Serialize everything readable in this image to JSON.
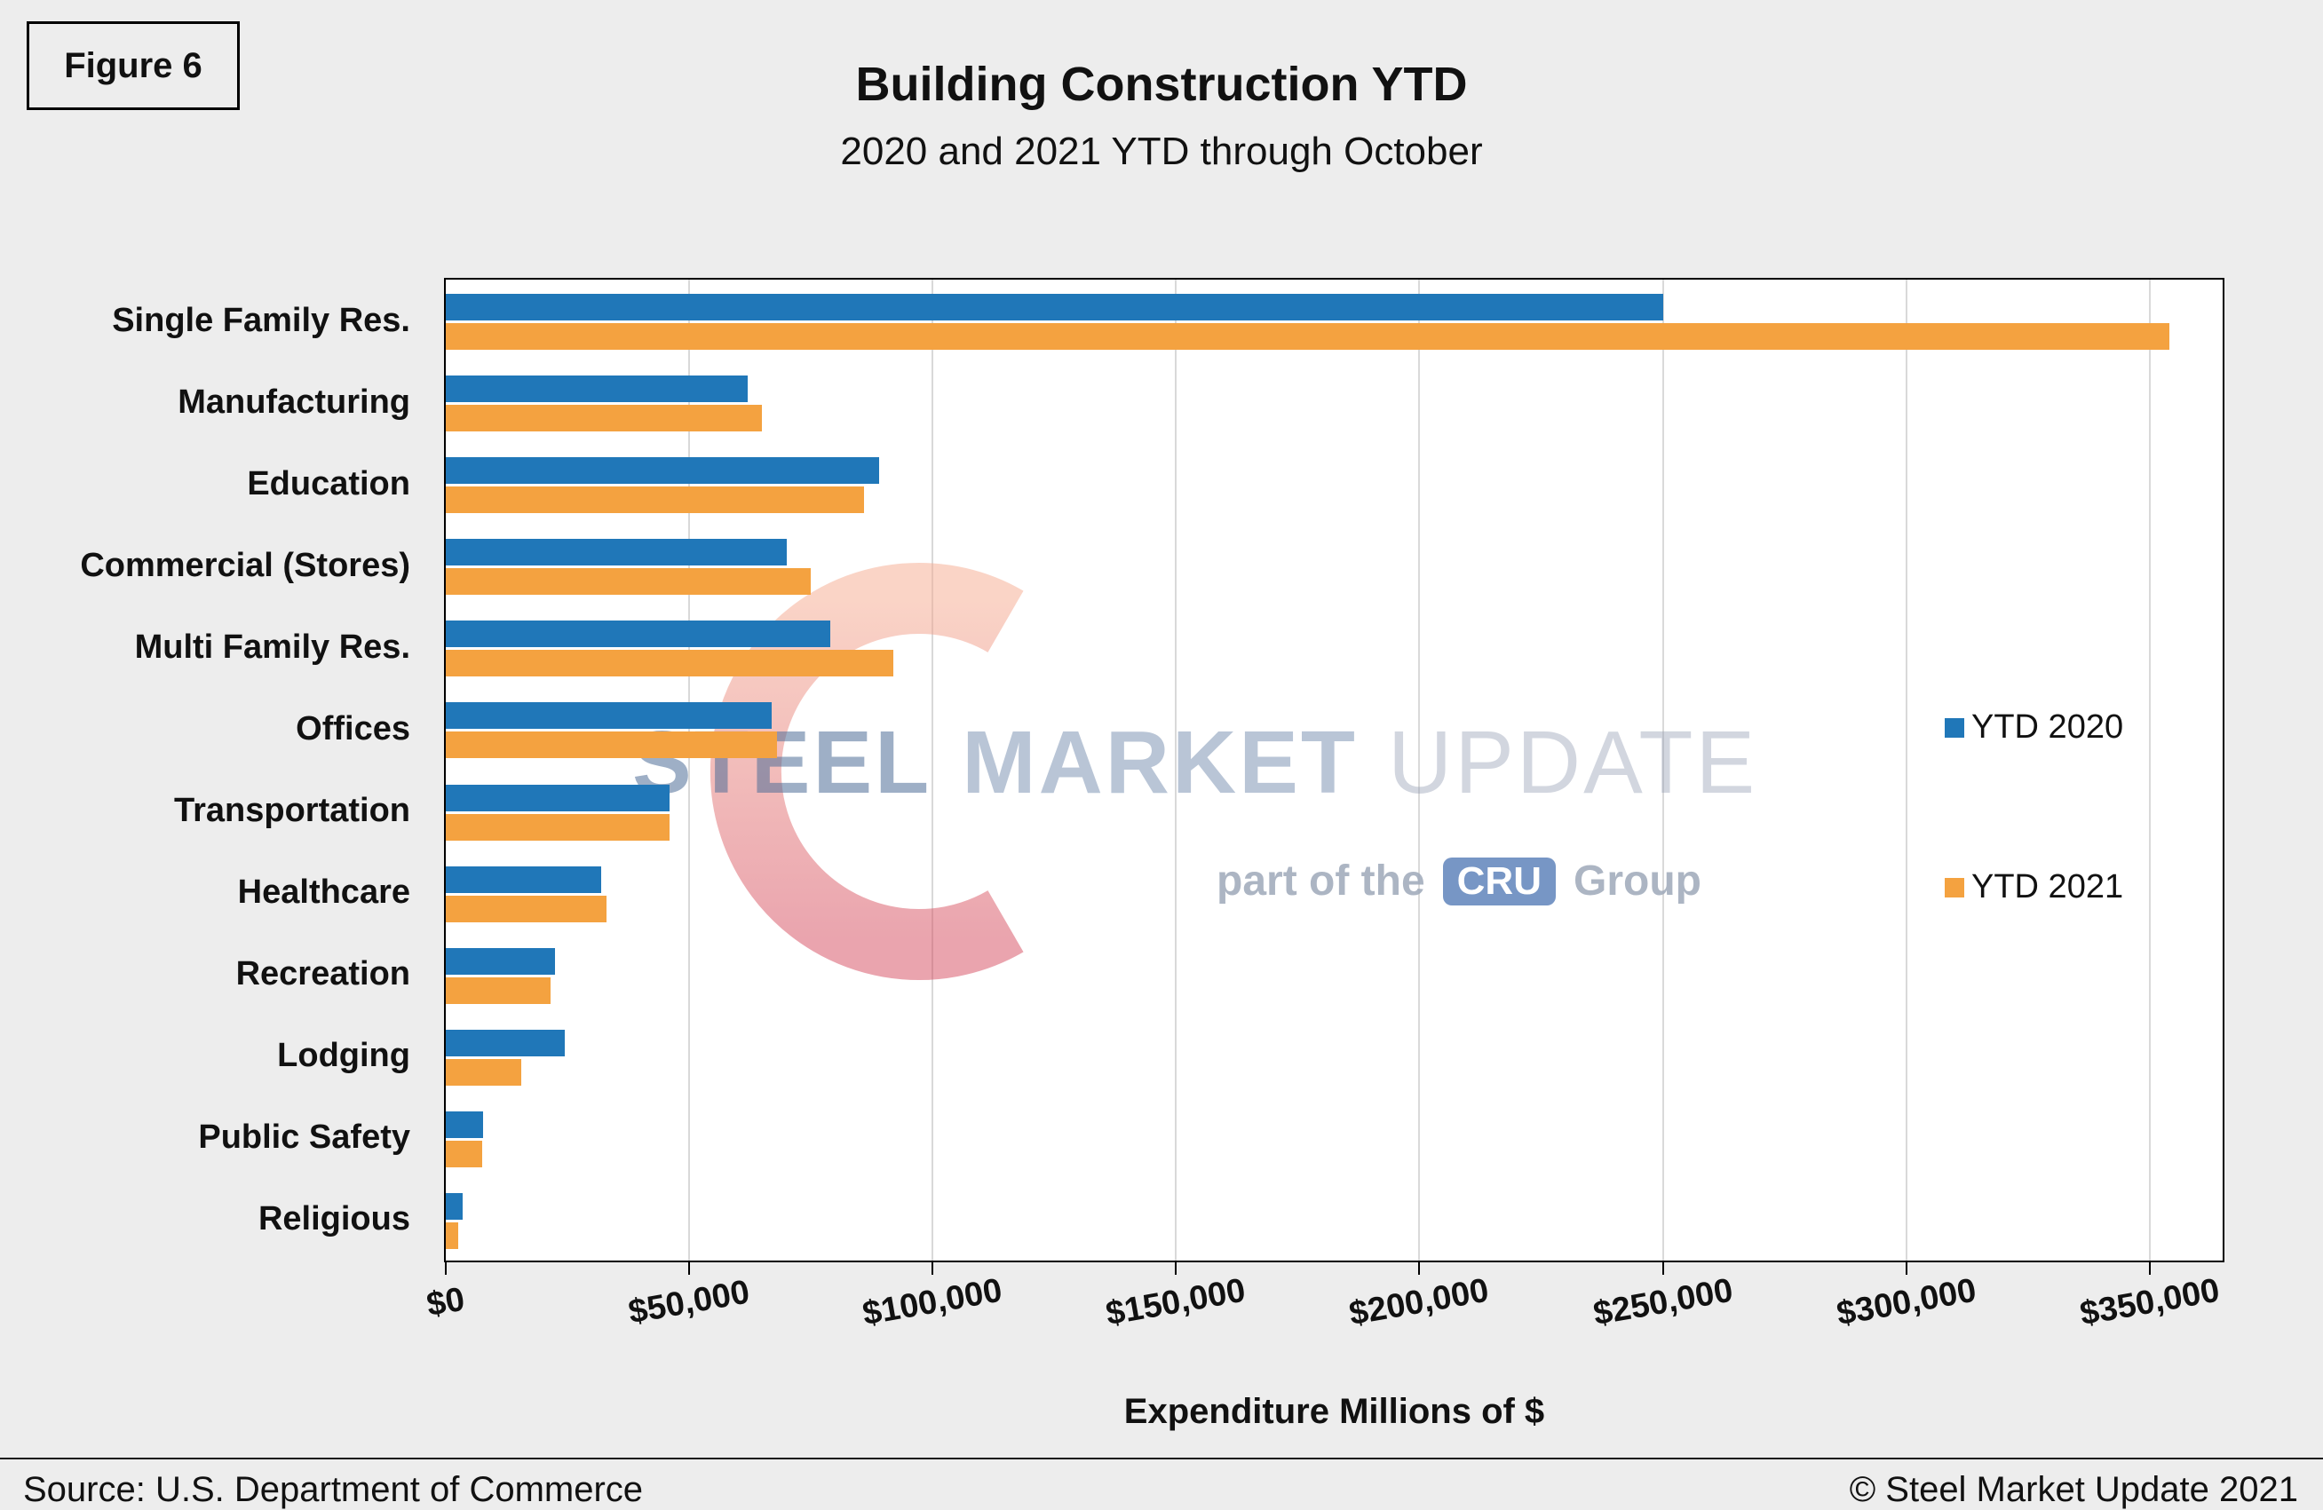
{
  "figure_label": "Figure 6",
  "source": "Source: U.S. Department of Commerce",
  "copyright": "© Steel Market Update 2021",
  "watermark": {
    "word1": "STEEL",
    "word2": "MARKET",
    "word3": "UPDATE",
    "tagline_prefix": "part of the",
    "cru": "CRU",
    "tagline_suffix": "Group",
    "arc_color_top": "#F5A98E",
    "arc_color_bottom": "#D4485C"
  },
  "chart_data": {
    "type": "bar",
    "orientation": "horizontal",
    "title": "Building Construction YTD",
    "subtitle": "2020 and 2021 YTD through October",
    "xlabel": "Expenditure Millions of $",
    "ylabel": "",
    "grid": true,
    "legend_position": "right",
    "xlim": [
      0,
      365000
    ],
    "x_ticks": [
      "$0",
      "$50,000",
      "$100,000",
      "$150,000",
      "$200,000",
      "$250,000",
      "$300,000",
      "$350,000"
    ],
    "x_tick_values": [
      0,
      50000,
      100000,
      150000,
      200000,
      250000,
      300000,
      350000
    ],
    "categories": [
      "Single Family Res.",
      "Manufacturing",
      "Education",
      "Commercial (Stores)",
      "Multi Family Res.",
      "Offices",
      "Transportation",
      "Healthcare",
      "Recreation",
      "Lodging",
      "Public Safety",
      "Religious"
    ],
    "series": [
      {
        "name": "YTD 2020",
        "color": "#2077B8",
        "values": [
          250000,
          62000,
          89000,
          70000,
          79000,
          67000,
          46000,
          32000,
          22500,
          24500,
          7700,
          3400
        ]
      },
      {
        "name": "YTD 2021",
        "color": "#F4A240",
        "values": [
          354000,
          65000,
          86000,
          75000,
          92000,
          68000,
          46000,
          33000,
          21500,
          15500,
          7400,
          2500
        ]
      }
    ]
  }
}
